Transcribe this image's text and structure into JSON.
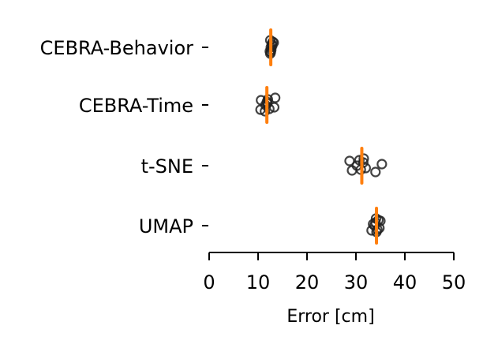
{
  "chart_data": {
    "type": "scatter",
    "orientation": "horizontal",
    "title": "",
    "xlabel": "Error [cm]",
    "ylabel": "",
    "xlim": [
      0,
      50
    ],
    "xticks": [
      "0",
      "10",
      "20",
      "30",
      "40",
      "50"
    ],
    "categories": [
      "CEBRA-Behavior",
      "CEBRA-Time",
      "t-SNE",
      "UMAP"
    ],
    "grid": false,
    "legend": "none",
    "series": [
      {
        "values": [
          [
            12.8,
            12.6,
            13.0,
            12.7,
            12.5,
            12.9,
            13.2,
            12.4,
            12.6,
            12.5
          ],
          [
            11.8,
            10.5,
            12.0,
            13.3,
            11.4,
            11.9,
            10.6,
            12.3,
            11.5,
            13.5
          ],
          [
            31.5,
            29.2,
            30.7,
            32.0,
            34.0,
            35.3,
            28.7,
            31.0,
            30.2,
            31.6
          ],
          [
            34.0,
            33.2,
            34.6,
            34.8,
            34.2,
            33.5,
            35.0,
            34.4,
            33.8,
            34.1
          ]
        ]
      },
      {
        "values": [
          12.6,
          11.8,
          31.2,
          34.2
        ]
      }
    ],
    "colors": {
      "points": "#222222",
      "median": "#ff7f0e",
      "axis": "#000000"
    }
  }
}
